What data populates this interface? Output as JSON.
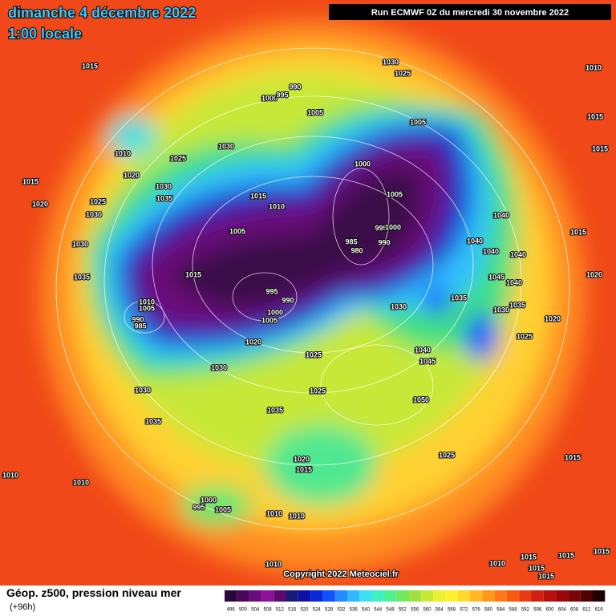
{
  "header": {
    "title": "dimanche 4 décembre 2022",
    "subtitle": "1:00 locale",
    "run": "Run ECMWF 0Z du mercredi 30 novembre 2022"
  },
  "map": {
    "isobar_labels": [
      "1015",
      "1030",
      "1025",
      "990",
      "1000",
      "995",
      "1005",
      "1005",
      "1010",
      "1015",
      "1015",
      "1010",
      "1025",
      "1030",
      "1020",
      "1015",
      "1030",
      "1035",
      "1025",
      "1020",
      "1030",
      "1015",
      "1010",
      "1000",
      "1005",
      "1040",
      "985",
      "980",
      "995",
      "1000",
      "990",
      "1005",
      "1040",
      "1040",
      "1040",
      "1045",
      "1040",
      "1015",
      "1020",
      "1030",
      "1035",
      "1015",
      "995",
      "990",
      "1000",
      "1005",
      "1010",
      "1005",
      "990",
      "985",
      "1030",
      "1035",
      "1030",
      "1035",
      "1020",
      "1025",
      "1020",
      "1025",
      "1040",
      "1045",
      "1030",
      "1030",
      "1025",
      "1050",
      "1035",
      "1035",
      "1025",
      "1015",
      "1020",
      "1015",
      "1010",
      "1010",
      "1000",
      "995",
      "1005",
      "1010",
      "1010",
      "1010",
      "1010",
      "1015",
      "1015",
      "1015",
      "1015",
      "1015"
    ]
  },
  "footer": {
    "caption": "Géop. z500, pression niveau mer",
    "lead": "(+96h)",
    "copyright": "Copyright 2022 Meteociel.fr"
  },
  "legend": {
    "levels": [
      496,
      500,
      504,
      508,
      512,
      516,
      520,
      524,
      528,
      532,
      536,
      540,
      544,
      548,
      552,
      556,
      560,
      564,
      568,
      572,
      576,
      580,
      584,
      588,
      592,
      596,
      600,
      604,
      608,
      612,
      616
    ],
    "colors": [
      "#2a0838",
      "#4a0858",
      "#6c0c7c",
      "#8c109c",
      "#5a0a6a",
      "#1a1a78",
      "#1010a8",
      "#0a28d8",
      "#1050ff",
      "#2888ff",
      "#30b8ff",
      "#38e0f0",
      "#40f0c0",
      "#50f090",
      "#70e860",
      "#a0e040",
      "#c8e838",
      "#e8f030",
      "#fff030",
      "#ffd828",
      "#ffb820",
      "#ff9818",
      "#ff7814",
      "#f85810",
      "#e83c10",
      "#d02010",
      "#b81010",
      "#980808",
      "#780404",
      "#500000",
      "#200000"
    ]
  }
}
